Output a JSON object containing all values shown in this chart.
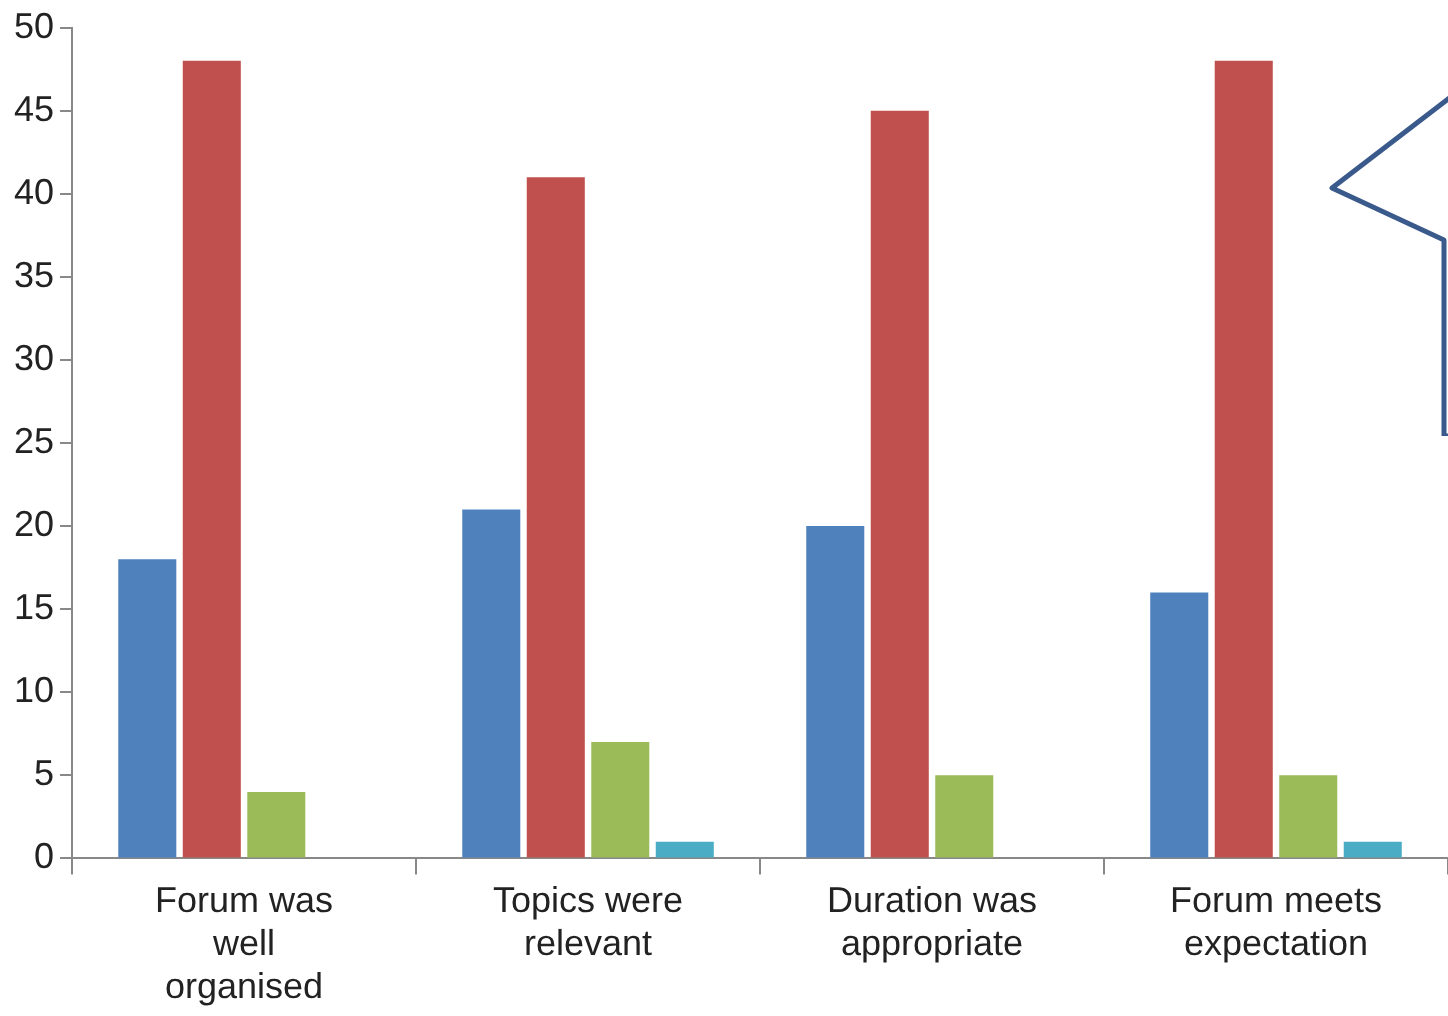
{
  "chart_data": {
    "type": "bar",
    "categories": [
      "Forum was well organised",
      "Topics were relevant",
      "Duration was appropriate",
      "Forum meets expectation"
    ],
    "series": [
      {
        "color": "#4f81bd",
        "values": [
          18,
          21,
          20,
          16
        ]
      },
      {
        "color": "#c0504d",
        "values": [
          48,
          41,
          45,
          48
        ]
      },
      {
        "color": "#9bbb59",
        "values": [
          4,
          7,
          5,
          5
        ]
      },
      {
        "color": "#4bacc6",
        "values": [
          0,
          1,
          0,
          1
        ]
      }
    ],
    "ylim": [
      0,
      50
    ],
    "yticks": [
      0,
      5,
      10,
      15,
      20,
      25,
      30,
      35,
      40,
      45,
      50
    ],
    "grid": false,
    "legend": false
  }
}
